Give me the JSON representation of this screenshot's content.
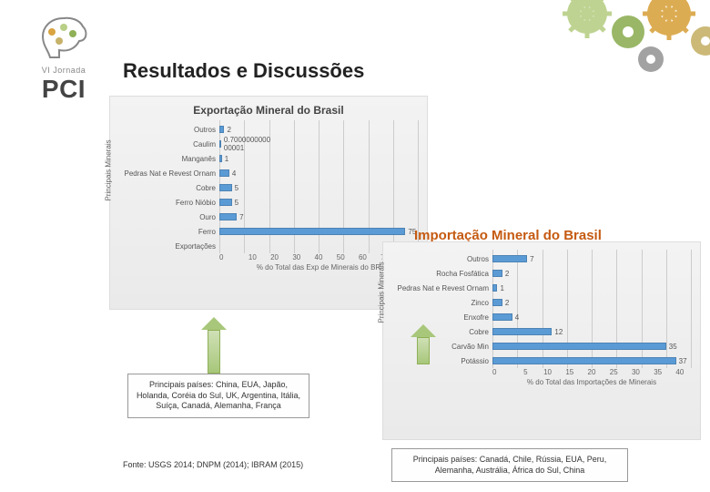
{
  "page": {
    "title": "Resultados e Discussões",
    "source": "Fonte: USGS 2014; DNPM (2014); IBRAM (2015)"
  },
  "logo": {
    "line1": "VI Jornada",
    "line2": "PCI"
  },
  "accent_colors": {
    "bar": "#5b9bd5",
    "import_title": "#c55a11",
    "grid": "#cccccc",
    "panel_bg_from": "#f3f3f3",
    "panel_bg_to": "#eaeaea"
  },
  "export_chart": {
    "type": "horizontal-bar",
    "title": "Exportação Mineral do Brasil",
    "y_axis_label": "Principais Minerais",
    "x_axis_label": "% do Total das Exp de Minerais do BR",
    "xmax": 80,
    "xtick_step": 10,
    "categories": [
      "Outros",
      "Caulim",
      "Manganês",
      "Pedras Nat e Revest Ornam",
      "Cobre",
      "Ferro Nióbio",
      "Ouro",
      "Ferro",
      "Exportações"
    ],
    "labels": [
      "2",
      "0.7000000000\n00001",
      "1",
      "4",
      "5",
      "5",
      "7",
      "75",
      ""
    ],
    "values": [
      2,
      0.7,
      1,
      4,
      5,
      5,
      7,
      75,
      0
    ],
    "bar_color": "#5b9bd5",
    "fontsize_cat": 8,
    "fontsize_val": 8,
    "title_fontsize": 12
  },
  "import_chart": {
    "type": "horizontal-bar",
    "title": "Importação Mineral do Brasil",
    "y_axis_label": "Principais Minerais",
    "x_axis_label": "% do Total das Importações de Minerais",
    "xmax": 40,
    "xtick_step": 5,
    "categories": [
      "Outros",
      "Rocha Fosfática",
      "Pedras Nat e Revest Ornam",
      "Zinco",
      "Enxofre",
      "Cobre",
      "Carvão Min",
      "Potássio"
    ],
    "labels": [
      "7",
      "2",
      "1",
      "2",
      "4",
      "12",
      "35",
      "37"
    ],
    "values": [
      7,
      2,
      1,
      2,
      4,
      12,
      35,
      37
    ],
    "bar_color": "#5b9bd5",
    "fontsize_cat": 8,
    "fontsize_val": 8,
    "title_fontsize": 15
  },
  "callouts": {
    "export": "Principais países: China, EUA, Japão, Holanda, Coréia do Sul, UK, Argentina, Itália, Suíça, Canadá, Alemanha, França",
    "import": "Principais países: Canadá, Chile, Rússia, EUA, Peru, Alemanha, Austrália, África do Sul, China"
  },
  "gears": {
    "colors": [
      "#b8cf86",
      "#8fb056",
      "#d9a441",
      "#c7b26a",
      "#999999"
    ]
  }
}
